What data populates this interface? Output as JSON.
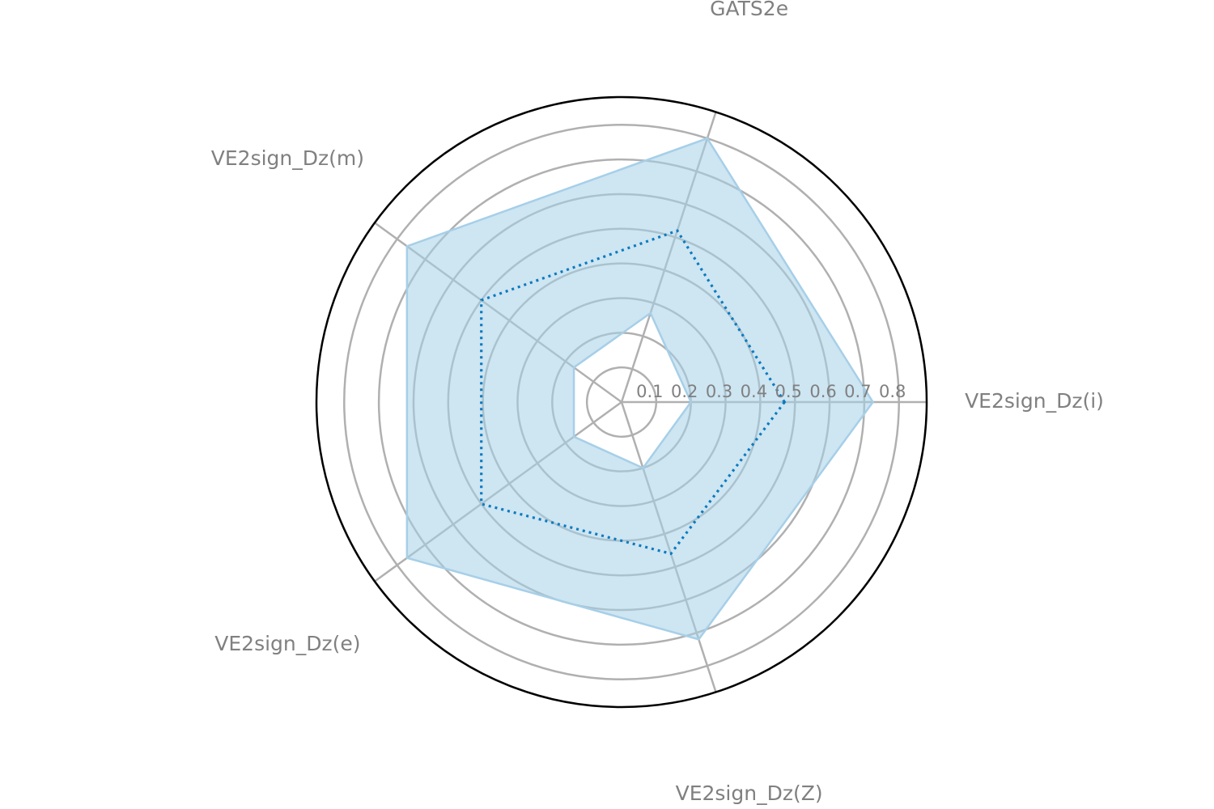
{
  "chart_data": {
    "type": "radar",
    "title": "",
    "categories": [
      "VE2sign_Dz(i)",
      "GATS2e",
      "VE2sign_Dz(m)",
      "VE2sign_Dz(e)",
      "VE2sign_Dz(Z)"
    ],
    "r_ticks": [
      "0.1",
      "0.2",
      "0.3",
      "0.4",
      "0.5",
      "0.6",
      "0.7",
      "0.8"
    ],
    "rlim": [
      0,
      0.88
    ],
    "grid": true,
    "series": [
      {
        "style": "band",
        "color": "#a6cfe8",
        "upper": [
          0.725,
          0.8,
          0.765,
          0.765,
          0.72
        ],
        "lower": [
          0.2,
          0.27,
          0.17,
          0.17,
          0.2
        ]
      },
      {
        "style": "dotted-line",
        "color": "#0a7bbf",
        "values": [
          0.47,
          0.52,
          0.5,
          0.5,
          0.46
        ]
      }
    ]
  }
}
